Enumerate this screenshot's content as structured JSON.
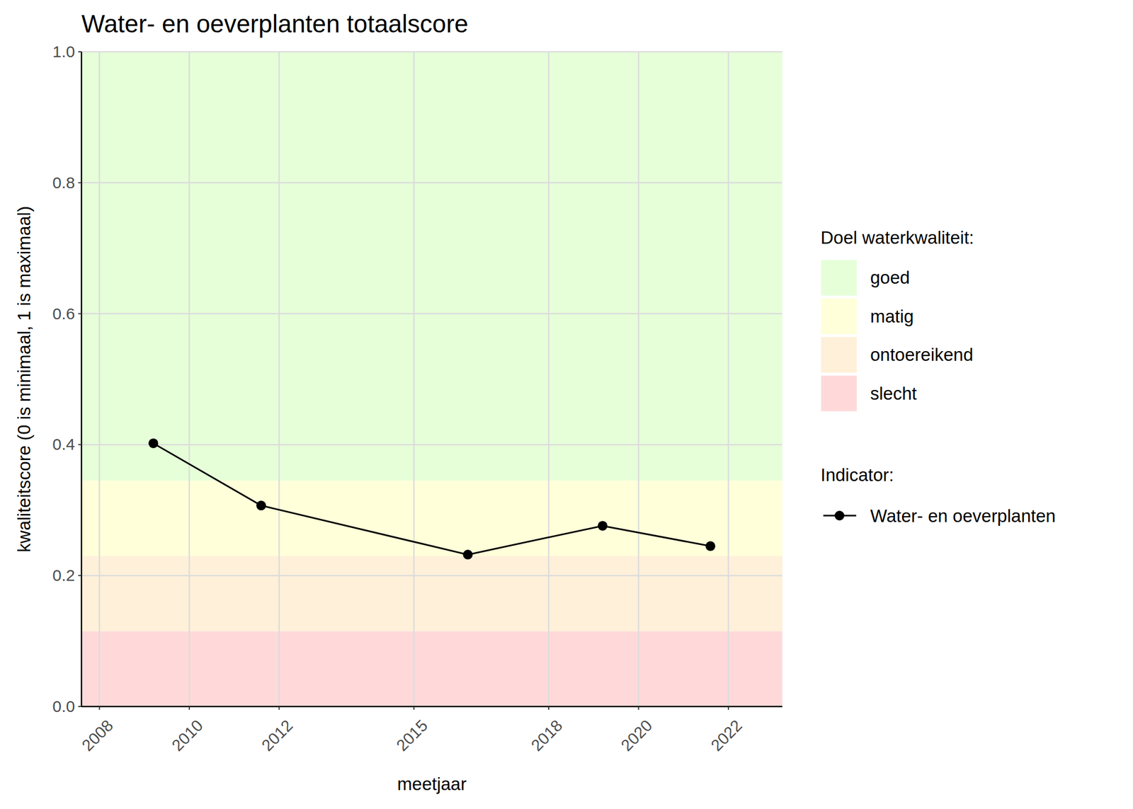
{
  "chart_data": {
    "type": "line",
    "title": "Water- en oeverplanten totaalscore",
    "x_label": "meetjaar",
    "y_label": "kwaliteitscore (0 is minimaal, 1 is maximaal)",
    "x": [
      2009.2,
      2011.6,
      2016.2,
      2019.2,
      2021.6
    ],
    "series": [
      {
        "name": "Water- en oeverplanten",
        "color": "#000000",
        "marker": "circle",
        "line_style": "solid",
        "values": [
          0.402,
          0.307,
          0.232,
          0.276,
          0.245
        ]
      }
    ],
    "xlim": [
      2007.6,
      2023.2
    ],
    "xticks": [
      2008,
      2010,
      2012,
      2015,
      2018,
      2020,
      2022
    ],
    "ylim": [
      0,
      1
    ],
    "yticks": [
      {
        "value": 0,
        "label": "0.0"
      },
      0.2,
      0.4,
      0.6,
      0.8,
      {
        "value": 1,
        "label": "1.0"
      }
    ],
    "bands": {
      "title": "Doel waterkwaliteit:",
      "items": [
        {
          "name": "goed",
          "color": "#e6ffd9",
          "range": [
            0.345,
            1
          ]
        },
        {
          "name": "matig",
          "color": "#ffffd9",
          "range": [
            0.23,
            0.345
          ]
        },
        {
          "name": "ontoereikend",
          "color": "#fff0d9",
          "range": [
            0.115,
            0.23
          ]
        },
        {
          "name": "slecht",
          "color": "#ffd9d9",
          "range": [
            0,
            0.115
          ]
        }
      ]
    },
    "legend_title": "Indicator:",
    "legend": "right",
    "grid": true
  }
}
